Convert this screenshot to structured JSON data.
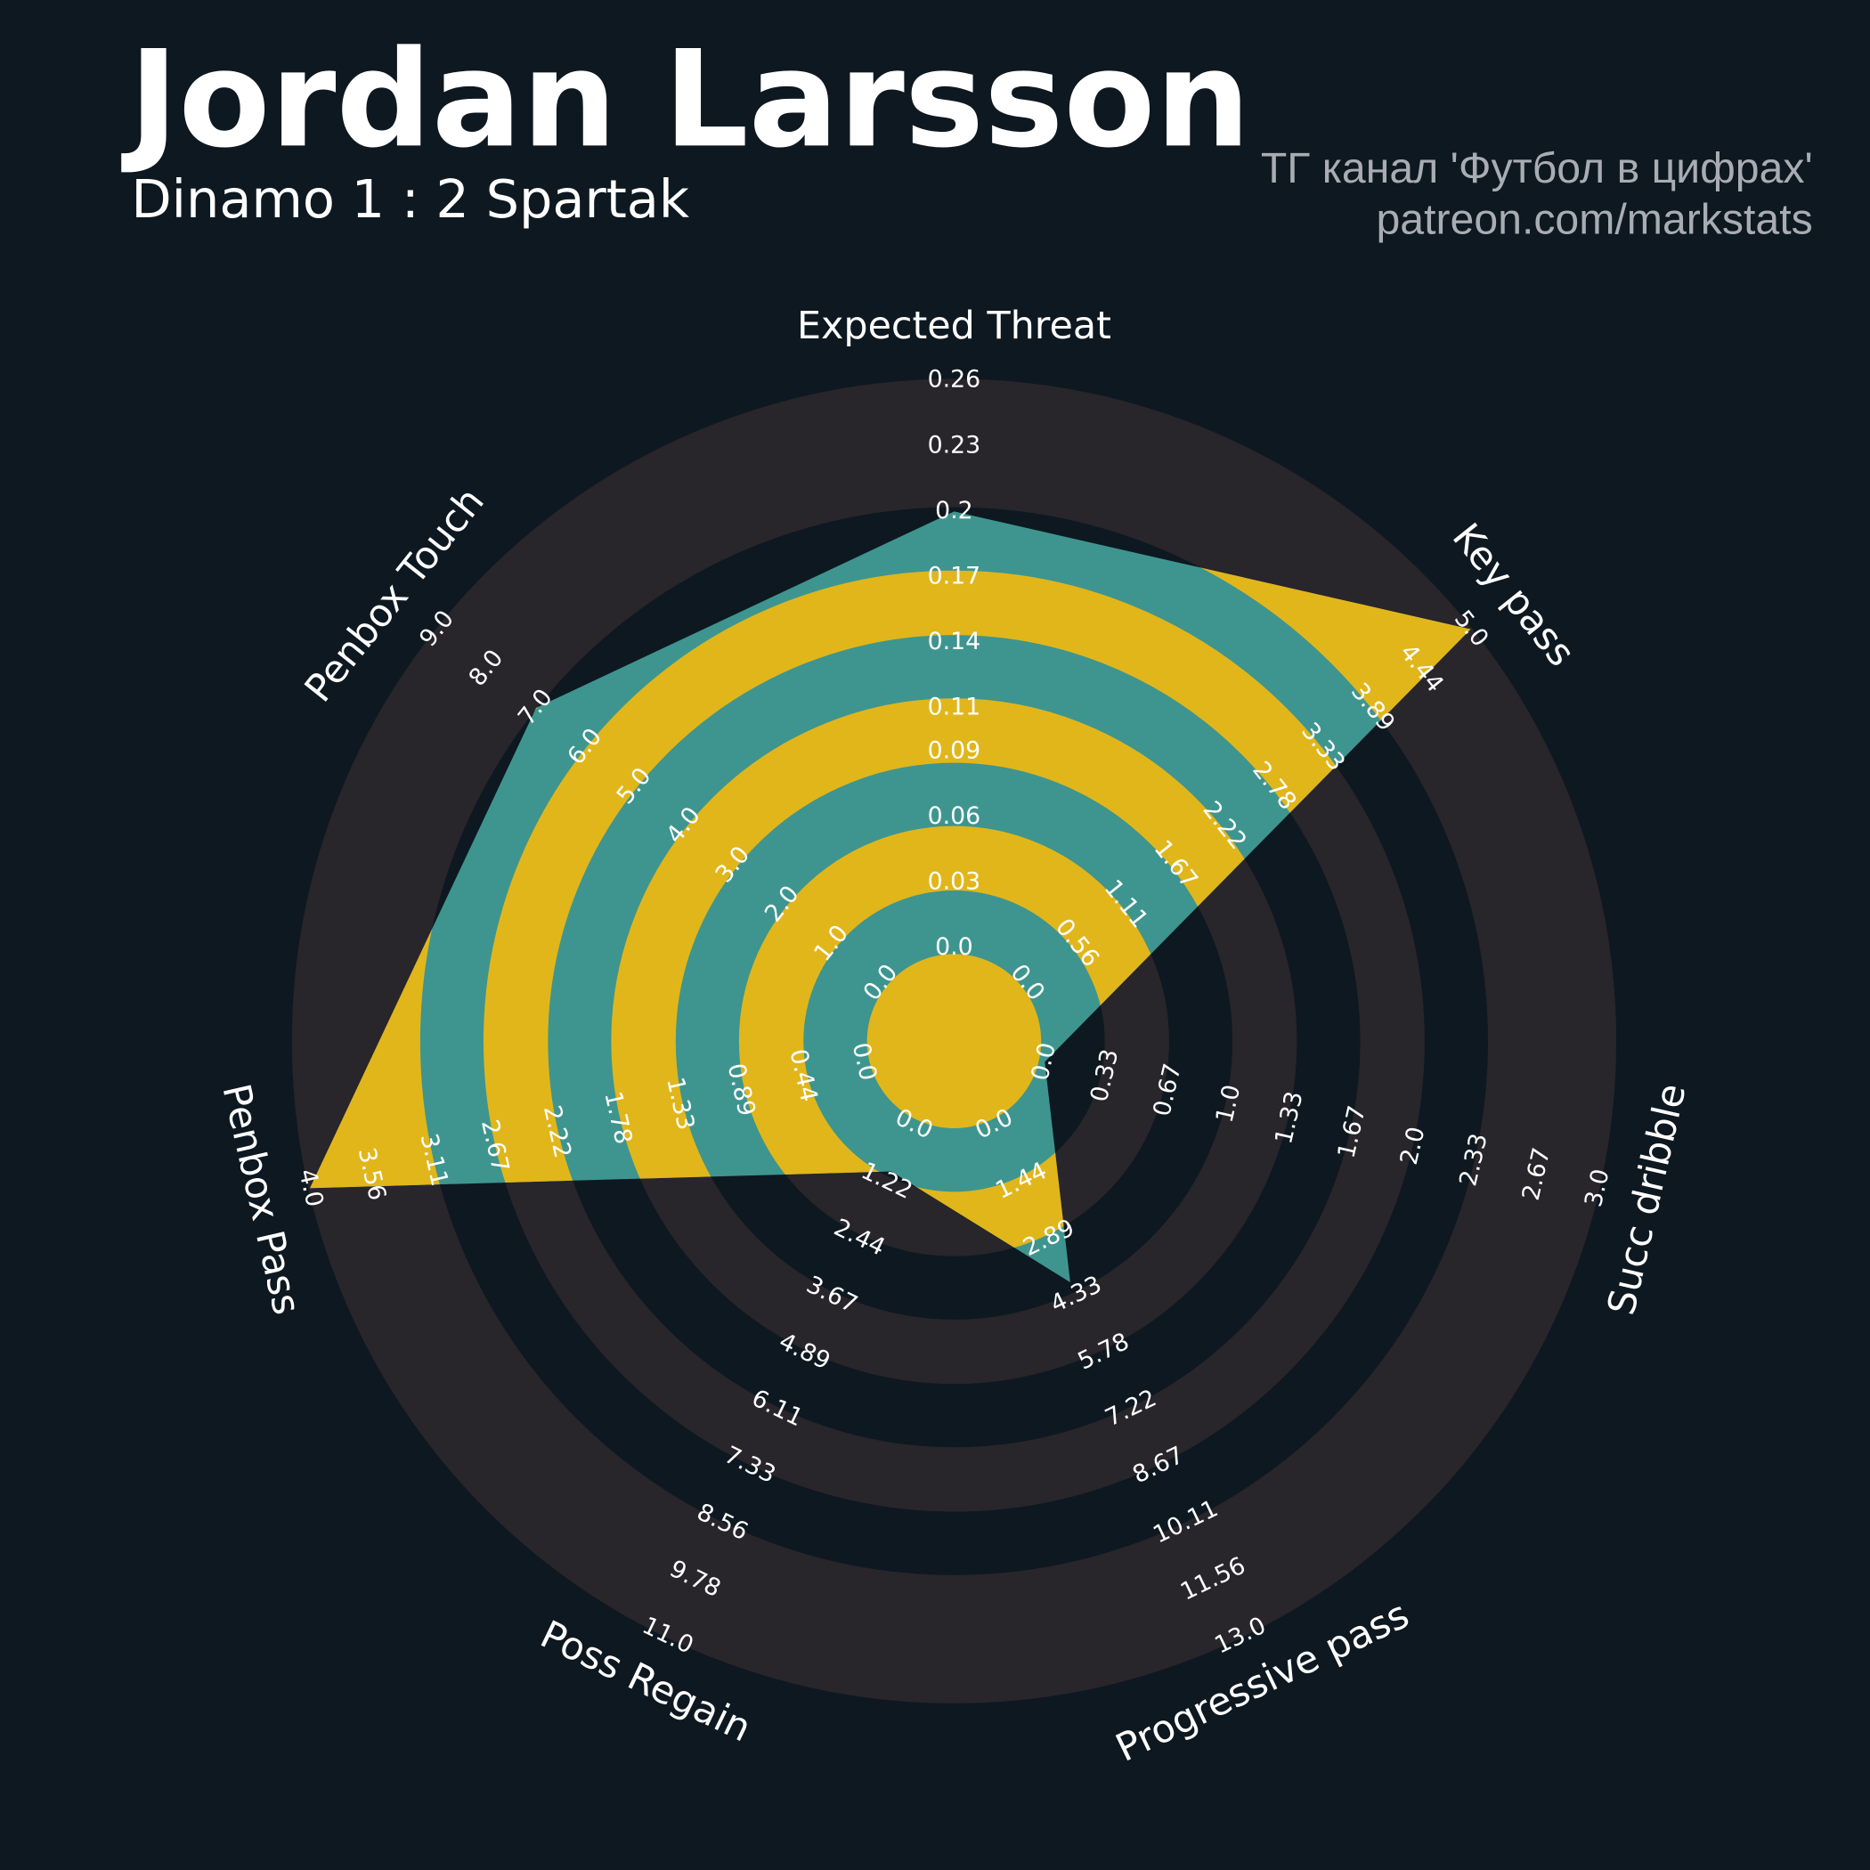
{
  "chart_data": {
    "type": "radar",
    "title": "Jordan Larsson",
    "subtitle": "Dinamo 1 : 2 Spartak",
    "credits": [
      "ТГ канал 'Футбол в цифрах'",
      "patreon.com/markstats"
    ],
    "polygon_color": "#3e958f",
    "ring_color": "#e1b61b",
    "params": [
      {
        "name": "Expected Threat",
        "lim": [
          0,
          0.26
        ],
        "value": 0.2,
        "ticks": [
          {
            "value": 0,
            "label": "0.0"
          },
          0.03,
          0.06,
          0.09,
          0.11,
          0.14,
          0.17,
          0.2,
          0.23,
          0.26
        ]
      },
      {
        "name": "Key pass",
        "lim": [
          0,
          5
        ],
        "value": 5,
        "ticks": [
          {
            "value": 0,
            "label": "0.0"
          },
          0.56,
          1.11,
          1.67,
          2.22,
          2.78,
          3.33,
          3.89,
          4.44,
          {
            "value": 5,
            "label": "5.0"
          }
        ]
      },
      {
        "name": "Succ dribble",
        "lim": [
          0,
          3
        ],
        "value": 0,
        "ticks": [
          {
            "value": 0,
            "label": "0.0"
          },
          0.33,
          0.67,
          {
            "value": 1,
            "label": "1.0"
          },
          1.33,
          1.67,
          {
            "value": 2,
            "label": "2.0"
          },
          2.33,
          2.67,
          {
            "value": 3,
            "label": "3.0"
          }
        ]
      },
      {
        "name": "Progressive pass",
        "lim": [
          0,
          13
        ],
        "value": 4,
        "ticks": [
          {
            "value": 0,
            "label": "0.0"
          },
          1.44,
          2.89,
          4.33,
          5.78,
          7.22,
          8.67,
          10.11,
          11.56,
          {
            "value": 13,
            "label": "13.0"
          }
        ]
      },
      {
        "name": "Poss Regain",
        "lim": [
          0,
          11
        ],
        "value": 1,
        "ticks": [
          {
            "value": 0,
            "label": "0.0"
          },
          1.22,
          2.44,
          3.67,
          4.89,
          6.11,
          7.33,
          8.56,
          9.78,
          {
            "value": 11,
            "label": "11.0"
          }
        ]
      },
      {
        "name": "Penbox Pass",
        "lim": [
          0,
          4
        ],
        "value": 4,
        "ticks": [
          {
            "value": 0,
            "label": "0.0"
          },
          0.44,
          0.89,
          1.33,
          1.78,
          2.22,
          2.67,
          3.11,
          3.56,
          {
            "value": 4,
            "label": "4.0"
          }
        ]
      },
      {
        "name": "Penbox Touch",
        "lim": [
          0,
          9
        ],
        "value": 7,
        "ticks": [
          {
            "value": 0,
            "label": "0.0"
          },
          {
            "value": 1,
            "label": "1.0"
          },
          {
            "value": 2,
            "label": "2.0"
          },
          {
            "value": 3,
            "label": "3.0"
          },
          {
            "value": 4,
            "label": "4.0"
          },
          {
            "value": 5,
            "label": "5.0"
          },
          {
            "value": 6,
            "label": "6.0"
          },
          {
            "value": 7,
            "label": "7.0"
          },
          {
            "value": 8,
            "label": "8.0"
          },
          {
            "value": 9,
            "label": "9.0"
          }
        ]
      }
    ]
  }
}
